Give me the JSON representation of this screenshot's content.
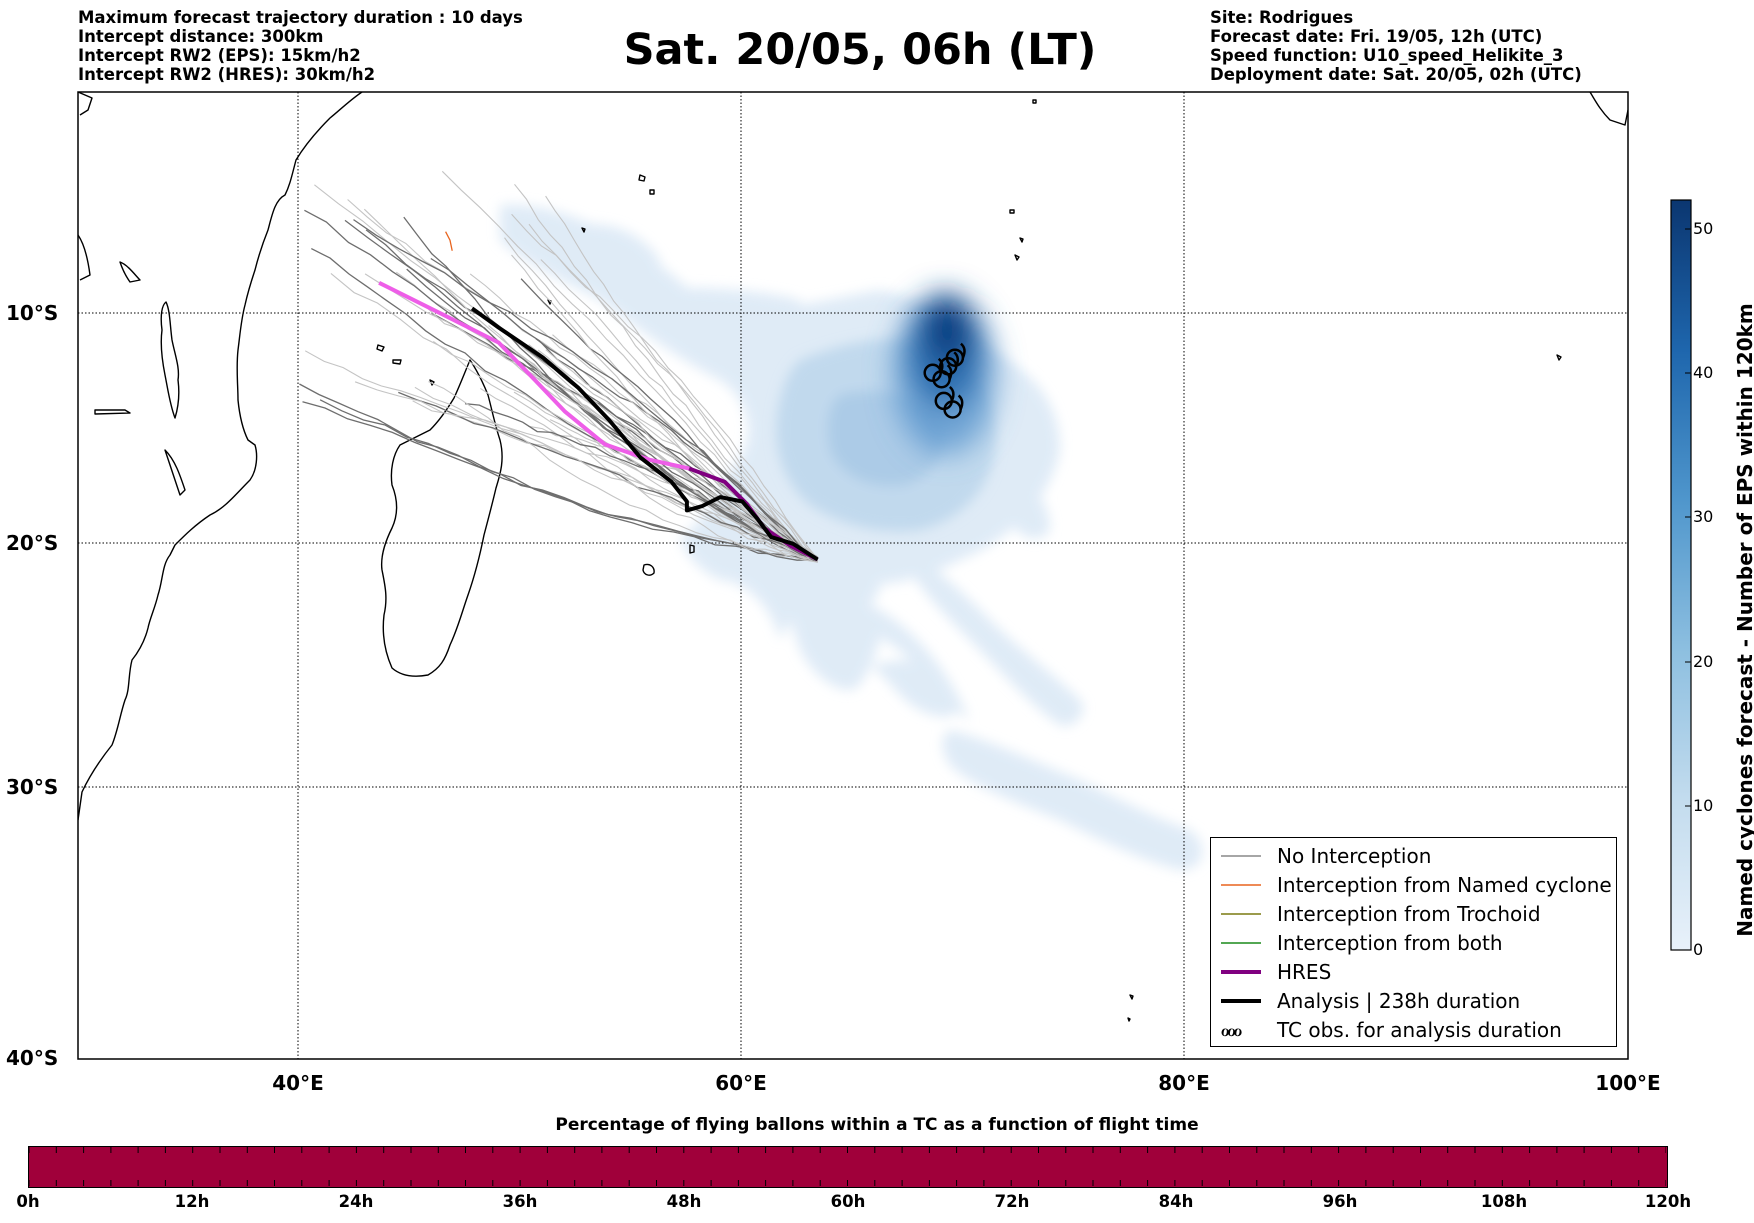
{
  "header_left": [
    "Maximum forecast trajectory duration : 10 days",
    "Intercept distance: 300km",
    "Intercept RW2 (EPS):  15km/h2",
    "Intercept RW2 (HRES): 30km/h2"
  ],
  "header_right": [
    "Site: Rodrigues",
    "Forecast date: Fri. 19/05, 12h (UTC)",
    "Speed function: U10_speed_Helikite_3",
    "Deployment date: Sat. 20/05, 02h (UTC)"
  ],
  "title": "Sat. 20/05, 06h (LT)",
  "map": {
    "lon_range": [
      30,
      100
    ],
    "lat_range": [
      -40,
      2
    ],
    "lat_labels": [
      "10°S",
      "20°S",
      "30°S",
      "40°S"
    ],
    "lon_labels": [
      "40°E",
      "60°E",
      "80°E",
      "100°E"
    ],
    "gridlines": true,
    "launch_site": {
      "lon": 63.4,
      "lat": -19.7
    },
    "hres_track": [
      [
        43.6,
        -7.0
      ],
      [
        46.5,
        -8.5
      ],
      [
        49.0,
        -9.8
      ],
      [
        50.6,
        -11.5
      ],
      [
        52.0,
        -13.0
      ],
      [
        53.8,
        -14.5
      ],
      [
        55.8,
        -15.2
      ],
      [
        57.6,
        -15.6
      ],
      [
        59.2,
        -16.2
      ],
      [
        60.2,
        -17.2
      ],
      [
        61.0,
        -18.3
      ],
      [
        62.2,
        -19.1
      ],
      [
        63.4,
        -19.7
      ]
    ],
    "analysis_track": [
      [
        47.8,
        -8.2
      ],
      [
        49.0,
        -9.1
      ],
      [
        51.0,
        -10.5
      ],
      [
        52.6,
        -11.9
      ],
      [
        54.0,
        -13.4
      ],
      [
        55.4,
        -15.1
      ],
      [
        56.8,
        -16.2
      ],
      [
        57.5,
        -17.1
      ],
      [
        57.5,
        -17.5
      ],
      [
        58.2,
        -17.3
      ],
      [
        59.0,
        -16.9
      ],
      [
        60.0,
        -17.1
      ],
      [
        60.7,
        -17.9
      ],
      [
        61.3,
        -18.7
      ],
      [
        62.3,
        -19.0
      ],
      [
        63.4,
        -19.7
      ]
    ],
    "tc_obs": [
      [
        68.6,
        -11.2
      ],
      [
        69.0,
        -11.5
      ],
      [
        69.3,
        -10.9
      ],
      [
        69.6,
        -10.5
      ],
      [
        69.1,
        -12.5
      ],
      [
        69.5,
        -12.9
      ]
    ],
    "eps_track_count": 50,
    "orange_track": [
      [
        46.6,
        -4.6
      ],
      [
        46.8,
        -5.0
      ],
      [
        46.9,
        -5.5
      ]
    ]
  },
  "legend": [
    {
      "label": "No Interception",
      "color": "#888888",
      "width": 1.5
    },
    {
      "label": "Interception from Named cyclone",
      "color": "#e8641e",
      "width": 1.5
    },
    {
      "label": "Interception from Trochoid",
      "color": "#7a7a10",
      "width": 1.5
    },
    {
      "label": "Interception from both",
      "color": "#1a8a1a",
      "width": 1.5
    },
    {
      "label": "HRES",
      "color": "#800080",
      "width": 4
    },
    {
      "label": "Analysis | 238h duration",
      "color": "#000000",
      "width": 4
    },
    {
      "label": "TC obs. for analysis duration",
      "symbol": "ℴℴℴ"
    }
  ],
  "colorbar": {
    "title": "Named cyclones forecast - Number of EPS within 120km",
    "ticks": [
      "0",
      "10",
      "20",
      "30",
      "40",
      "50"
    ],
    "range": [
      0,
      52
    ],
    "color_low": "#e8f1fa",
    "color_high": "#0b3670"
  },
  "timebar": {
    "title": "Percentage of flying ballons within a TC as a function of flight time",
    "fill_color": "#a0003a",
    "fill_fraction": 1.0,
    "labels": [
      "0h",
      "12h",
      "24h",
      "36h",
      "48h",
      "60h",
      "72h",
      "84h",
      "96h",
      "108h",
      "120h"
    ]
  }
}
